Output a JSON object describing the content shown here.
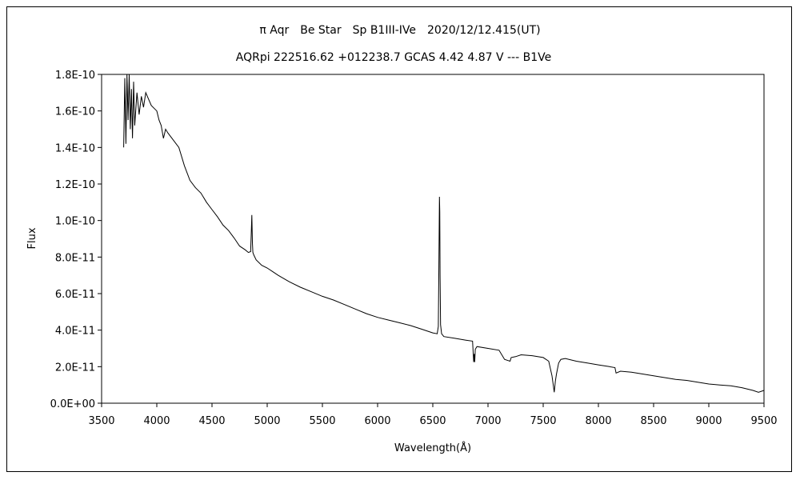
{
  "chart_data": {
    "type": "line",
    "title": "π Aqr　Be Star　Sp B1III-IVe　2020/12/12.415(UT)",
    "subtitle": "AQRpi 222516.62 +012238.7 GCAS 4.42 4.87 V --- B1Ve",
    "xlabel": "Wavelength(Å)",
    "ylabel": "Flux",
    "xlim": [
      3500,
      9500
    ],
    "ylim": [
      0,
      1.8e-10
    ],
    "grid": false,
    "legend": "none",
    "x_ticks": [
      "3500",
      "4000",
      "4500",
      "5000",
      "5500",
      "6000",
      "6500",
      "7000",
      "7500",
      "8000",
      "8500",
      "9000",
      "9500"
    ],
    "y_ticks": [
      "0.0E+00",
      "2.0E-11",
      "4.0E-11",
      "6.0E-11",
      "8.0E-11",
      "1.0E-10",
      "1.2E-10",
      "1.4E-10",
      "1.6E-10",
      "1.8E-10"
    ],
    "series": [
      {
        "color": "#000000",
        "x": [
          3700,
          3710,
          3720,
          3730,
          3740,
          3750,
          3760,
          3770,
          3780,
          3790,
          3800,
          3820,
          3840,
          3860,
          3880,
          3900,
          3950,
          4000,
          4020,
          4040,
          4060,
          4080,
          4100,
          4150,
          4200,
          4250,
          4300,
          4350,
          4400,
          4450,
          4500,
          4550,
          4600,
          4650,
          4700,
          4750,
          4800,
          4830,
          4850,
          4855,
          4861,
          4866,
          4870,
          4880,
          4900,
          4950,
          5000,
          5050,
          5100,
          5200,
          5300,
          5400,
          5500,
          5600,
          5700,
          5800,
          5900,
          6000,
          6100,
          6200,
          6300,
          6400,
          6500,
          6540,
          6550,
          6555,
          6560,
          6563,
          6566,
          6570,
          6580,
          6600,
          6700,
          6800,
          6860,
          6870,
          6875,
          6880,
          6885,
          6890,
          6900,
          7000,
          7100,
          7150,
          7200,
          7210,
          7250,
          7300,
          7400,
          7500,
          7550,
          7580,
          7600,
          7610,
          7620,
          7640,
          7660,
          7700,
          7800,
          7900,
          8000,
          8100,
          8150,
          8160,
          8200,
          8300,
          8400,
          8500,
          8600,
          8700,
          8800,
          8900,
          9000,
          9100,
          9200,
          9300,
          9400,
          9450,
          9500
        ],
        "values": [
          1.4e-10,
          1.78e-10,
          1.42e-10,
          1.8e-10,
          1.55e-10,
          1.8e-10,
          1.5e-10,
          1.72e-10,
          1.45e-10,
          1.76e-10,
          1.52e-10,
          1.7e-10,
          1.58e-10,
          1.68e-10,
          1.62e-10,
          1.7e-10,
          1.63e-10,
          1.6e-10,
          1.55e-10,
          1.52e-10,
          1.45e-10,
          1.5e-10,
          1.48e-10,
          1.44e-10,
          1.4e-10,
          1.3e-10,
          1.22e-10,
          1.18e-10,
          1.15e-10,
          1.1e-10,
          1.06e-10,
          1.02e-10,
          9.75e-11,
          9.45e-11,
          9.05e-11,
          8.6e-11,
          8.4e-11,
          8.25e-11,
          8.3e-11,
          9.2e-11,
          1.03e-10,
          8.8e-11,
          8.25e-11,
          8.1e-11,
          7.85e-11,
          7.55e-11,
          7.4e-11,
          7.2e-11,
          7e-11,
          6.65e-11,
          6.35e-11,
          6.1e-11,
          5.85e-11,
          5.65e-11,
          5.4e-11,
          5.15e-11,
          4.9e-11,
          4.7e-11,
          4.55e-11,
          4.4e-11,
          4.25e-11,
          4.05e-11,
          3.85e-11,
          3.8e-11,
          4.2e-11,
          7.5e-11,
          1.13e-10,
          1.05e-10,
          7e-11,
          4.3e-11,
          3.8e-11,
          3.65e-11,
          3.55e-11,
          3.45e-11,
          3.4e-11,
          2.25e-11,
          2.7e-11,
          2.25e-11,
          2.95e-11,
          3e-11,
          3.1e-11,
          3e-11,
          2.9e-11,
          2.4e-11,
          2.3e-11,
          2.5e-11,
          2.55e-11,
          2.65e-11,
          2.6e-11,
          2.5e-11,
          2.3e-11,
          1.5e-11,
          6e-12,
          1.2e-11,
          1.6e-11,
          2.2e-11,
          2.4e-11,
          2.45e-11,
          2.3e-11,
          2.2e-11,
          2.1e-11,
          2e-11,
          1.95e-11,
          1.65e-11,
          1.75e-11,
          1.7e-11,
          1.6e-11,
          1.5e-11,
          1.4e-11,
          1.3e-11,
          1.25e-11,
          1.15e-11,
          1.05e-11,
          1e-11,
          9.5e-12,
          8.5e-12,
          7e-12,
          6e-12,
          7e-12
        ]
      }
    ]
  }
}
